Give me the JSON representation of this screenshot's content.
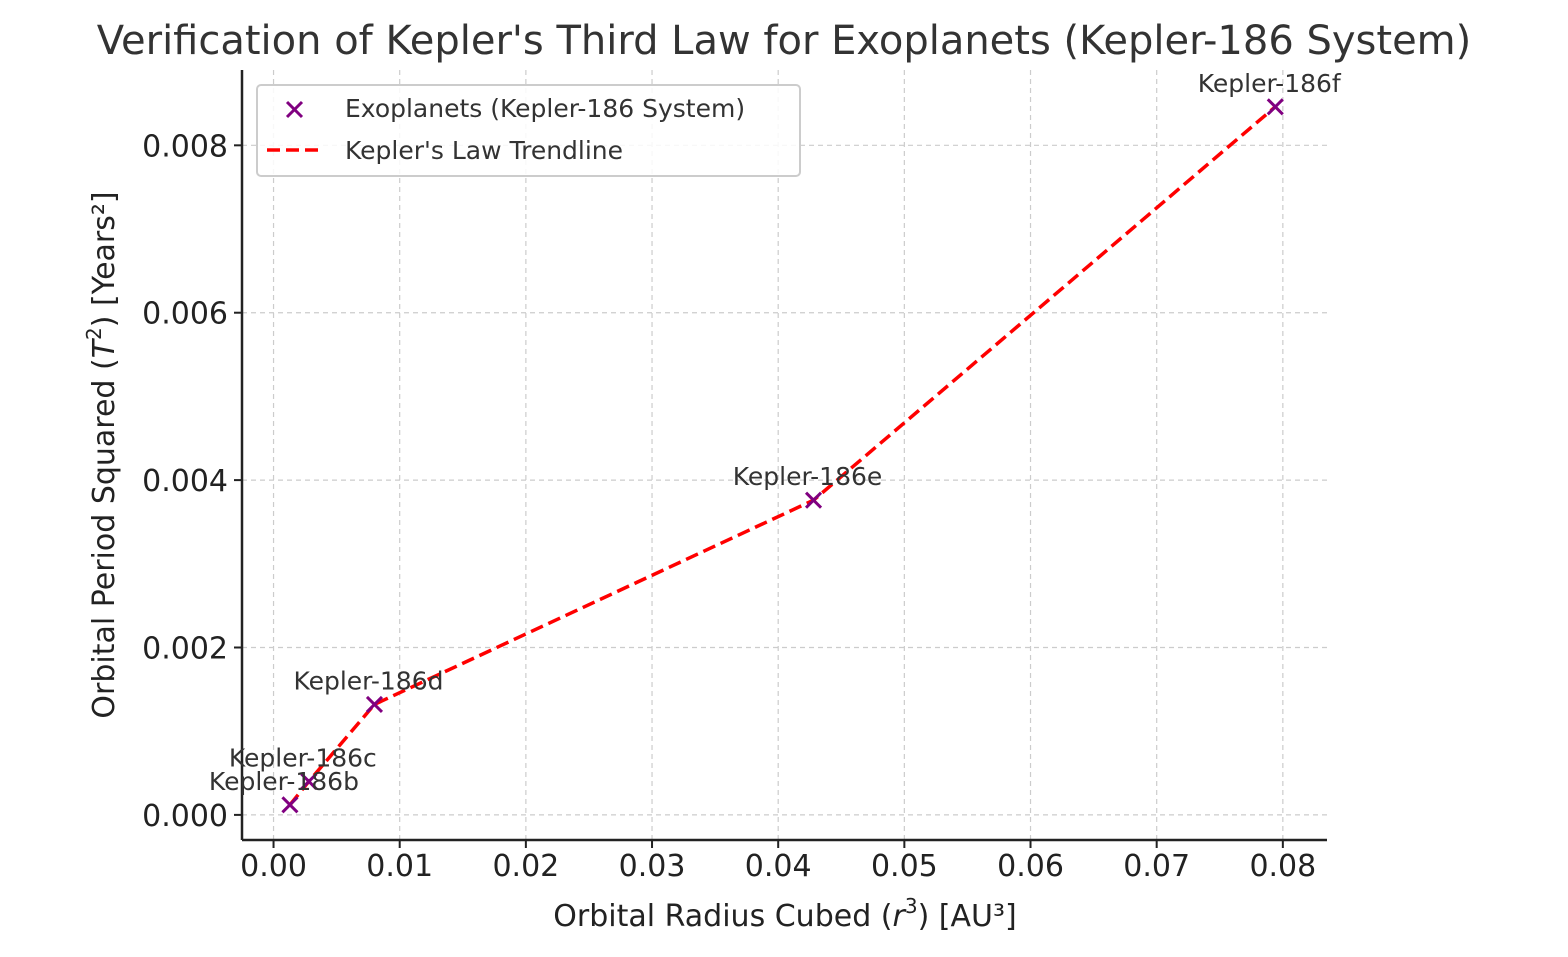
{
  "chart_data": {
    "type": "scatter",
    "title": "Verification of Kepler's Third Law for Exoplanets (Kepler-186 System)",
    "xlabel": {
      "prefix": "Orbital Radius Cubed (",
      "var": "r",
      "sup": "3",
      "suffix": ") [AU³]"
    },
    "ylabel": {
      "prefix": "Orbital Period Squared (",
      "var": "T",
      "sup": "2",
      "suffix": ") [Years²]"
    },
    "xlim": [
      -0.0025,
      0.0835
    ],
    "ylim": [
      -0.0003,
      0.0089
    ],
    "xticks": [
      0.0,
      0.01,
      0.02,
      0.03,
      0.04,
      0.05,
      0.06,
      0.07,
      0.08
    ],
    "xtick_labels": [
      "0.00",
      "0.01",
      "0.02",
      "0.03",
      "0.04",
      "0.05",
      "0.06",
      "0.07",
      "0.08"
    ],
    "yticks": [
      0.0,
      0.002,
      0.004,
      0.006,
      0.008
    ],
    "ytick_labels": [
      "0.000",
      "0.002",
      "0.004",
      "0.006",
      "0.008"
    ],
    "grid": true,
    "legend_position": "upper-left",
    "series": [
      {
        "name": "Exoplanets (Kepler-186 System)",
        "kind": "scatter",
        "marker": "x",
        "color": "#800080",
        "x": [
          0.0013,
          0.0028,
          0.008,
          0.0428,
          0.0794
        ],
        "y": [
          0.00012,
          0.0004,
          0.00132,
          0.00376,
          0.00846
        ],
        "labels": [
          "Kepler-186b",
          "Kepler-186c",
          "Kepler-186d",
          "Kepler-186e",
          "Kepler-186f"
        ]
      },
      {
        "name": "Kepler's Law Trendline",
        "kind": "line",
        "style": "dashed",
        "color": "#ff0000",
        "x": [
          0.0013,
          0.0028,
          0.008,
          0.0428,
          0.0794
        ],
        "y": [
          0.00012,
          0.0004,
          0.00132,
          0.00376,
          0.00846
        ]
      }
    ]
  }
}
